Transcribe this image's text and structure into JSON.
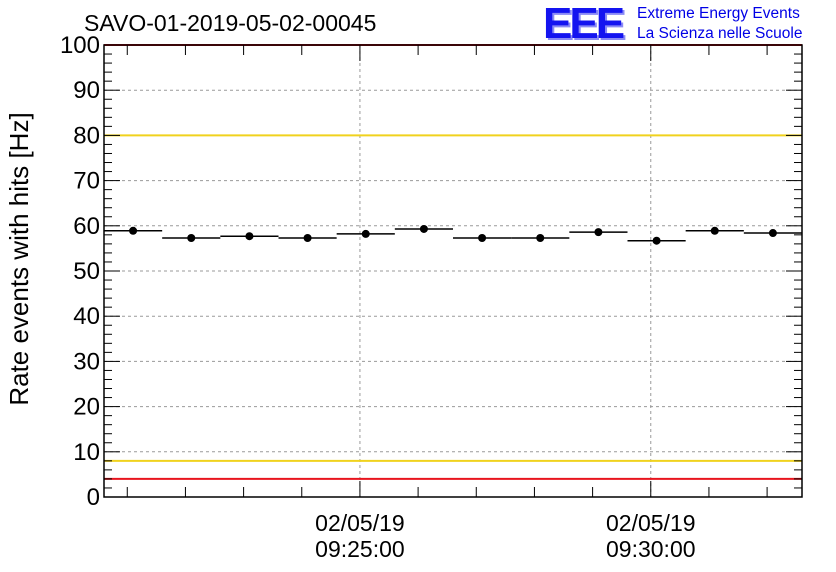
{
  "header": {
    "title": "SAVO-01-2019-05-02-00045",
    "logo_mark": "EEE",
    "logo_line1": "Extreme Energy Events",
    "logo_line2": "La Scienza nelle Scuole"
  },
  "colors": {
    "limit_red": "#e8141e",
    "limit_yellow": "#f0d21e",
    "points": "#000000",
    "grid": "#9a9a9a",
    "logo_blue": "#1414f0"
  },
  "chart_data": {
    "type": "scatter",
    "title": "SAVO-01-2019-05-02-00045",
    "ylabel": "Rate events with hits [Hz]",
    "xlabel": "",
    "ylim": [
      0,
      100
    ],
    "xlim_minutes": [
      -4.4,
      7.6
    ],
    "yticks": [
      "0",
      "10",
      "20",
      "30",
      "40",
      "50",
      "60",
      "70",
      "80",
      "90",
      "100"
    ],
    "xticks": [
      {
        "minute": 0,
        "date": "02/05/19",
        "time": "09:25:00"
      },
      {
        "minute": 5,
        "date": "02/05/19",
        "time": "09:30:00"
      }
    ],
    "bin_width_minutes": 1.0,
    "series": [
      {
        "name": "rate",
        "minutes": [
          -3.9,
          -2.9,
          -1.9,
          -0.9,
          0.1,
          1.1,
          2.1,
          3.1,
          4.1,
          5.1,
          6.1,
          7.1
        ],
        "values": [
          58.9,
          57.3,
          57.7,
          57.3,
          58.2,
          59.3,
          57.3,
          57.3,
          58.6,
          56.7,
          58.9,
          58.4
        ]
      }
    ],
    "reference_lines": [
      {
        "name": "upper-red-limit",
        "value": 100,
        "color": "#e8141e"
      },
      {
        "name": "upper-yellow-limit",
        "value": 80,
        "color": "#f0d21e"
      },
      {
        "name": "lower-yellow-limit",
        "value": 8,
        "color": "#f0d21e"
      },
      {
        "name": "lower-red-limit",
        "value": 4,
        "color": "#e8141e"
      }
    ],
    "grid": true
  }
}
